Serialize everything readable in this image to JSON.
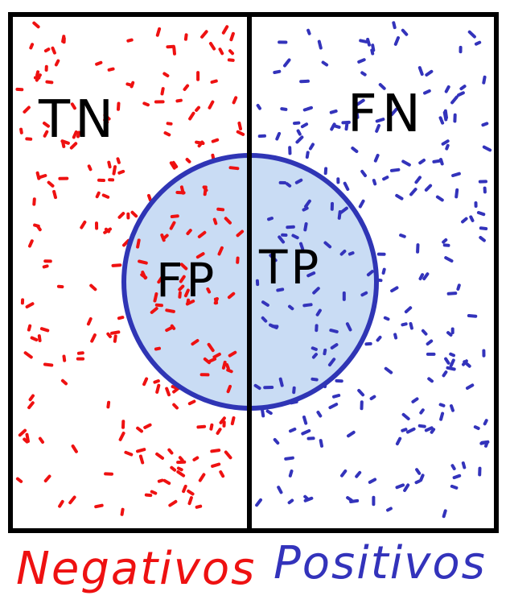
{
  "labels": {
    "true_negative": "TN",
    "false_negative": "FN",
    "false_positive": "FP",
    "true_positive": "TP",
    "negatives": "Negativos",
    "positives": "Positivos"
  },
  "colors": {
    "negative": "#ee1111",
    "positive": "#3333bb",
    "circle_fill": "#c9dcf4",
    "circle_stroke": "#2f35b5",
    "frame": "#000000"
  }
}
